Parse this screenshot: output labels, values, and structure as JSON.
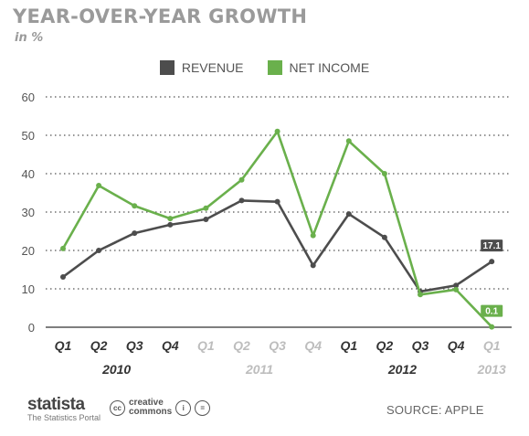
{
  "header": {
    "title": "YEAR-OVER-YEAR GROWTH",
    "subtitle": "in %"
  },
  "legend": [
    {
      "label": "REVENUE",
      "color": "#4d4d4d"
    },
    {
      "label": "NET INCOME",
      "color": "#6ab04c"
    }
  ],
  "chart_data": {
    "type": "line",
    "x": [
      "Q1",
      "Q2",
      "Q3",
      "Q4",
      "Q1",
      "Q2",
      "Q3",
      "Q4",
      "Q1",
      "Q2",
      "Q3",
      "Q4",
      "Q1"
    ],
    "x_years": [
      {
        "label": "2010",
        "start": 0,
        "end": 3
      },
      {
        "label": "2011",
        "start": 4,
        "end": 7
      },
      {
        "label": "2012",
        "start": 8,
        "end": 11
      },
      {
        "label": "2013",
        "start": 12,
        "end": 12
      }
    ],
    "series": [
      {
        "name": "REVENUE",
        "color": "#4d4d4d",
        "values": [
          13.1,
          20.0,
          24.5,
          26.7,
          28.1,
          33.0,
          32.7,
          16.1,
          29.5,
          23.4,
          9.3,
          10.9,
          17.1
        ]
      },
      {
        "name": "NET INCOME",
        "color": "#6ab04c",
        "values": [
          20.5,
          36.9,
          31.6,
          28.3,
          31.0,
          38.4,
          51.0,
          23.9,
          48.5,
          40.0,
          8.5,
          9.8,
          0.1
        ]
      }
    ],
    "end_labels": [
      "17.1",
      "0.1"
    ],
    "yticks": [
      0,
      10,
      20,
      30,
      40,
      50,
      60
    ],
    "ylim": [
      0,
      60
    ],
    "grid": true
  },
  "footer": {
    "brand": "statista",
    "brand_tagline": "The Statistics Portal",
    "license_line1": "creative",
    "license_line2": "commons",
    "source": "SOURCE: APPLE"
  }
}
